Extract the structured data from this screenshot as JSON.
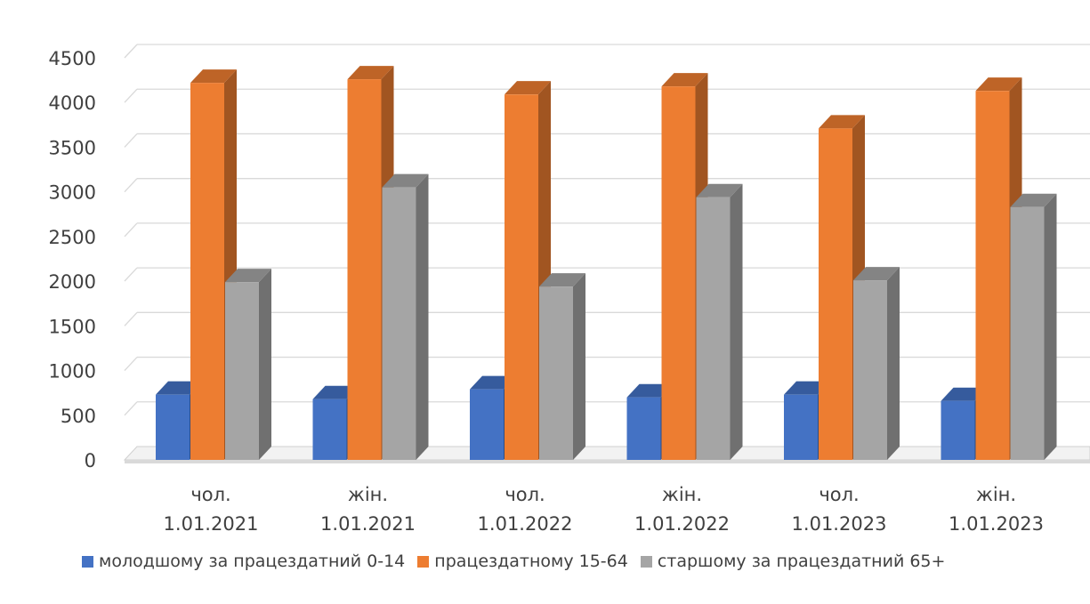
{
  "chart_data": {
    "type": "bar",
    "style": "3d-clustered-column",
    "categories": [
      [
        "чол.",
        "1.01.2021"
      ],
      [
        "жін.",
        "1.01.2021"
      ],
      [
        "чол.",
        "1.01.2022"
      ],
      [
        "жін.",
        "1.01.2022"
      ],
      [
        "чол.",
        "1.01.2023"
      ],
      [
        "жін.",
        "1.01.2023"
      ]
    ],
    "series": [
      {
        "name": "молодшому за працездатний 0-14",
        "color": "#4472C4",
        "values": [
          730,
          680,
          790,
          700,
          730,
          660
        ]
      },
      {
        "name": "працездатному 15-64",
        "color": "#ED7D31",
        "values": [
          4220,
          4260,
          4090,
          4180,
          3710,
          4130
        ]
      },
      {
        "name": "старшому за працездатний 65+",
        "color": "#A5A5A5",
        "values": [
          1990,
          3050,
          1940,
          2940,
          2010,
          2830
        ]
      }
    ],
    "yticks": [
      "0",
      "500",
      "1000",
      "1500",
      "2000",
      "2500",
      "3000",
      "3500",
      "4000",
      "4500"
    ],
    "ylim": [
      0,
      4500
    ],
    "grid": true,
    "legend_position": "bottom"
  }
}
